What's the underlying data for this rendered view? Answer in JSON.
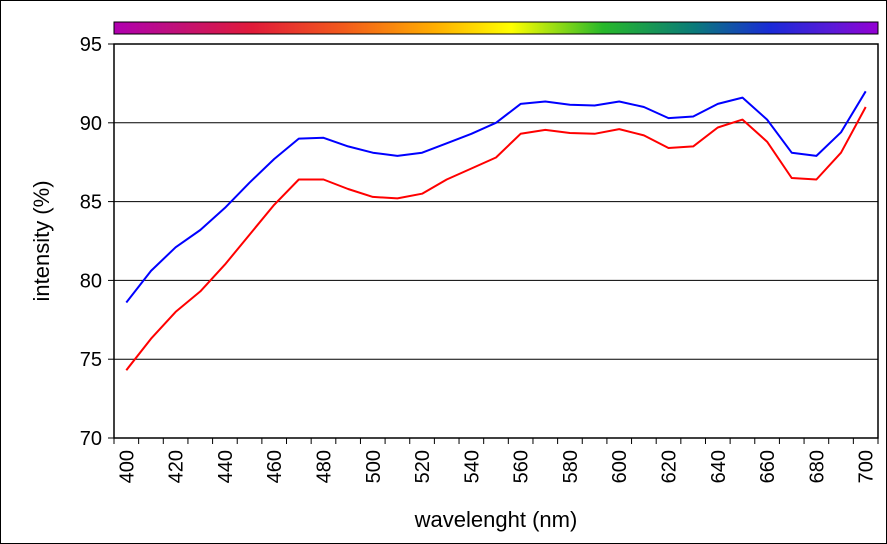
{
  "chart_data": {
    "type": "line",
    "title": "",
    "xlabel": "wavelenght (nm)",
    "ylabel": "intensity (%)",
    "xlim": [
      395,
      705
    ],
    "ylim": [
      70,
      95
    ],
    "x_ticks": [
      "400",
      "420",
      "440",
      "460",
      "480",
      "500",
      "520",
      "540",
      "560",
      "580",
      "600",
      "620",
      "640",
      "660",
      "680",
      "700"
    ],
    "y_ticks": [
      "70",
      "75",
      "80",
      "85",
      "90",
      "95"
    ],
    "x_minor_step": 10,
    "grid": "horizontal",
    "legend": "none",
    "spectrum_bar": "visible spectrum color bar above the plot area",
    "x": [
      400,
      410,
      420,
      430,
      440,
      450,
      460,
      470,
      480,
      490,
      500,
      510,
      520,
      530,
      540,
      550,
      560,
      570,
      580,
      590,
      600,
      610,
      620,
      630,
      640,
      650,
      660,
      670,
      680,
      690,
      700
    ],
    "series": [
      {
        "color": "#0000ff",
        "values": [
          78.6,
          80.6,
          82.1,
          83.2,
          84.6,
          86.2,
          87.7,
          89.0,
          89.05,
          88.5,
          88.1,
          87.9,
          88.1,
          88.7,
          89.3,
          90.0,
          91.2,
          91.35,
          91.15,
          91.1,
          91.35,
          91.0,
          90.3,
          90.4,
          91.2,
          91.6,
          90.2,
          88.1,
          87.9,
          89.4,
          92.0
        ]
      },
      {
        "color": "#ff0000",
        "values": [
          74.3,
          76.3,
          78.0,
          79.3,
          81.0,
          82.9,
          84.8,
          86.4,
          86.4,
          85.8,
          85.3,
          85.2,
          85.5,
          86.4,
          87.1,
          87.8,
          89.3,
          89.55,
          89.35,
          89.3,
          89.6,
          89.2,
          88.4,
          88.5,
          89.7,
          90.2,
          88.8,
          86.5,
          86.4,
          88.1,
          91.0
        ]
      }
    ]
  }
}
